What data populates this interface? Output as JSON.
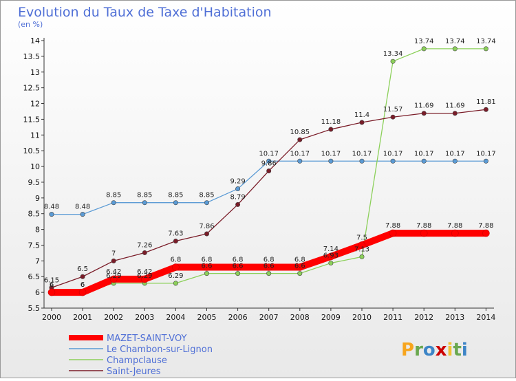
{
  "chart_data": {
    "type": "line",
    "title": "Evolution du Taux de Taxe d'Habitation",
    "subtitle": "(en %)",
    "x": [
      "2000",
      "2001",
      "2002",
      "2003",
      "2004",
      "2005",
      "2006",
      "2007",
      "2008",
      "2009",
      "2010",
      "2011",
      "2012",
      "2013",
      "2014"
    ],
    "ylim": [
      5.5,
      14
    ],
    "yticks": [
      "5.5",
      "6",
      "6.5",
      "7",
      "7.5",
      "8",
      "8.5",
      "9",
      "9.5",
      "10",
      "10.5",
      "11",
      "11.5",
      "12",
      "12.5",
      "13",
      "13.5",
      "14"
    ],
    "grid": false,
    "legend_position": "bottom-left",
    "series": [
      {
        "name": "MAZET-SAINT-VOY",
        "color": "#ff0000",
        "values": [
          6.0,
          6.0,
          6.42,
          6.42,
          6.8,
          6.8,
          6.8,
          6.8,
          6.8,
          7.14,
          7.5,
          7.88,
          7.88,
          7.88,
          7.88
        ],
        "labels": [
          "6",
          "6",
          "6.42",
          "6.42",
          "6.8",
          "6.8",
          "6.8",
          "6.8",
          "6.8",
          "7.14",
          "7.5",
          "7.88",
          "7.88",
          "7.88",
          "7.88"
        ]
      },
      {
        "name": "Le Chambon-sur-Lignon",
        "color": "#5b9bd5",
        "values": [
          8.48,
          8.48,
          8.85,
          8.85,
          8.85,
          8.85,
          9.29,
          10.17,
          10.17,
          10.17,
          10.17,
          10.17,
          10.17,
          10.17,
          10.17
        ],
        "labels": [
          "8.48",
          "8.48",
          "8.85",
          "8.85",
          "8.85",
          "8.85",
          "9.29",
          "10.17",
          "10.17",
          "10.17",
          "10.17",
          "10.17",
          "10.17",
          "10.17",
          "10.17"
        ]
      },
      {
        "name": "Champclause",
        "color": "#8cd05a",
        "values": [
          6.0,
          6.0,
          6.29,
          6.29,
          6.29,
          6.6,
          6.6,
          6.6,
          6.6,
          6.93,
          7.13,
          13.34,
          13.74,
          13.74,
          13.74
        ],
        "labels": [
          "6",
          "6",
          "6.29",
          "6.29",
          "6.29",
          "6.6",
          "6.6",
          "6.6",
          "6.6",
          "6.93",
          "7.13",
          "13.34",
          "13.74",
          "13.74",
          "13.74"
        ]
      },
      {
        "name": "Saint-Jeures",
        "color": "#7a1c28",
        "values": [
          6.15,
          6.5,
          7.0,
          7.26,
          7.63,
          7.86,
          8.79,
          9.86,
          10.85,
          11.18,
          11.4,
          11.57,
          11.69,
          11.69,
          11.81
        ],
        "labels": [
          "6.15",
          "6.5",
          "7",
          "7.26",
          "7.63",
          "7.86",
          "8.79",
          "9.86",
          "10.85",
          "11.18",
          "11.4",
          "11.57",
          "11.69",
          "11.69",
          "11.81"
        ]
      }
    ],
    "brand": {
      "text": "Proxiti",
      "letter_colors": [
        "#f7a51d",
        "#6aa84f",
        "#3d85c6",
        "#cc0000",
        "#f1c232",
        "#6aa84f",
        "#3d85c6"
      ]
    }
  }
}
